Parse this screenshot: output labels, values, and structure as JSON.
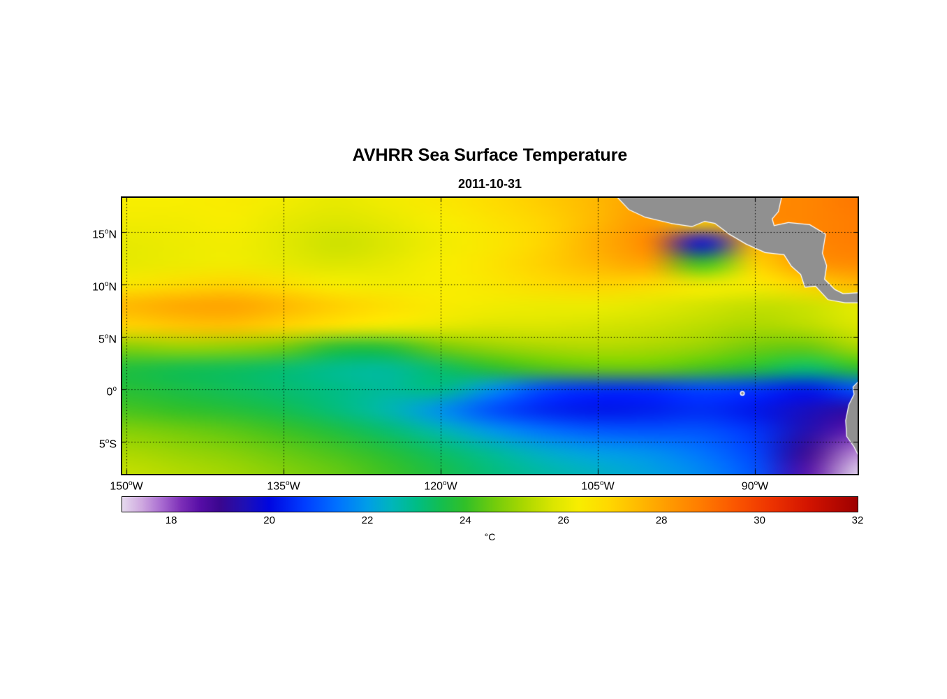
{
  "figure": {
    "title": "AVHRR Sea Surface Temperature",
    "subtitle": "2011-10-31"
  },
  "axes": {
    "lon_range": [
      -150.4,
      -80.2
    ],
    "lat_range": [
      -8.1,
      18.3
    ],
    "grid_color": "#000000",
    "x_ticks": [
      {
        "pre": "150",
        "sup": "o",
        "post": "W",
        "lon": -150
      },
      {
        "pre": "135",
        "sup": "o",
        "post": "W",
        "lon": -135
      },
      {
        "pre": "120",
        "sup": "o",
        "post": "W",
        "lon": -120
      },
      {
        "pre": "105",
        "sup": "o",
        "post": "W",
        "lon": -105
      },
      {
        "pre": "90",
        "sup": "o",
        "post": "W",
        "lon": -90
      }
    ],
    "y_ticks": [
      {
        "pre": "15",
        "sup": "o",
        "post": "N",
        "lat": 15
      },
      {
        "pre": "10",
        "sup": "o",
        "post": "N",
        "lat": 10
      },
      {
        "pre": "5",
        "sup": "o",
        "post": "N",
        "lat": 5
      },
      {
        "pre": "0",
        "sup": "o",
        "post": "",
        "lat": 0
      },
      {
        "pre": "5",
        "sup": "o",
        "post": "S",
        "lat": -5
      }
    ]
  },
  "colorbar": {
    "range": [
      17,
      32
    ],
    "unit": "°C",
    "ticks": [
      {
        "label": "18",
        "value": 18
      },
      {
        "label": "20",
        "value": 20
      },
      {
        "label": "22",
        "value": 22
      },
      {
        "label": "24",
        "value": 24
      },
      {
        "label": "26",
        "value": 26
      },
      {
        "label": "28",
        "value": 28
      },
      {
        "label": "30",
        "value": 30
      },
      {
        "label": "32",
        "value": 32
      }
    ],
    "stops": [
      {
        "v": 17.0,
        "c": "#e6daee"
      },
      {
        "v": 17.4,
        "c": "#cfa9e0"
      },
      {
        "v": 17.8,
        "c": "#a96cd1"
      },
      {
        "v": 18.2,
        "c": "#7d2fb8"
      },
      {
        "v": 18.6,
        "c": "#560da6"
      },
      {
        "v": 19.0,
        "c": "#3a078f"
      },
      {
        "v": 19.5,
        "c": "#1f10b5"
      },
      {
        "v": 20.0,
        "c": "#0007e1"
      },
      {
        "v": 20.7,
        "c": "#003cff"
      },
      {
        "v": 21.4,
        "c": "#0073ff"
      },
      {
        "v": 22.0,
        "c": "#009ee8"
      },
      {
        "v": 22.5,
        "c": "#00b6bb"
      },
      {
        "v": 23.0,
        "c": "#00bd86"
      },
      {
        "v": 23.5,
        "c": "#14be50"
      },
      {
        "v": 24.0,
        "c": "#32c028"
      },
      {
        "v": 24.6,
        "c": "#73cc0c"
      },
      {
        "v": 25.2,
        "c": "#abd800"
      },
      {
        "v": 25.8,
        "c": "#dce600"
      },
      {
        "v": 26.3,
        "c": "#f8ee00"
      },
      {
        "v": 26.9,
        "c": "#ffd900"
      },
      {
        "v": 27.5,
        "c": "#ffbc00"
      },
      {
        "v": 28.1,
        "c": "#ff9d00"
      },
      {
        "v": 28.8,
        "c": "#ff7c00"
      },
      {
        "v": 29.5,
        "c": "#fb5700"
      },
      {
        "v": 30.2,
        "c": "#ee3500"
      },
      {
        "v": 31.0,
        "c": "#d31400"
      },
      {
        "v": 32.0,
        "c": "#9e0000"
      }
    ]
  },
  "chart_data": {
    "type": "heatmap",
    "title": "AVHRR Sea Surface Temperature",
    "subtitle": "2011-10-31",
    "units": "°C",
    "value_range": [
      17,
      32
    ],
    "lon": [
      -150,
      -145,
      -140,
      -135,
      -130,
      -125,
      -120,
      -115,
      -110,
      -105,
      -100,
      -95,
      -90,
      -85,
      -80
    ],
    "lat": [
      18,
      16,
      14,
      12,
      10,
      8,
      6,
      4,
      2,
      0,
      -2,
      -4,
      -6,
      -8
    ],
    "sst": [
      [
        26.3,
        26.3,
        26.4,
        26.2,
        26.0,
        26.2,
        26.5,
        26.8,
        27.2,
        27.6,
        28.1,
        28.4,
        28.5,
        28.6,
        28.9
      ],
      [
        26.2,
        26.2,
        26.3,
        26.0,
        25.8,
        26.0,
        26.3,
        26.6,
        27.0,
        27.6,
        28.2,
        27.0,
        28.4,
        28.6,
        28.8
      ],
      [
        26.0,
        26.1,
        26.2,
        25.9,
        25.6,
        25.8,
        26.2,
        26.5,
        27.0,
        27.8,
        28.6,
        20.0,
        27.6,
        28.5,
        28.8
      ],
      [
        26.0,
        26.1,
        26.2,
        26.0,
        25.8,
        26.0,
        26.3,
        26.6,
        27.1,
        27.6,
        28.0,
        24.0,
        27.0,
        28.2,
        28.5
      ],
      [
        26.5,
        26.8,
        27.0,
        26.7,
        26.3,
        26.2,
        26.3,
        26.5,
        26.8,
        27.0,
        26.8,
        26.2,
        26.4,
        27.0,
        27.6
      ],
      [
        27.6,
        27.9,
        28.0,
        27.6,
        27.1,
        26.7,
        26.4,
        26.2,
        26.1,
        26.1,
        25.9,
        25.7,
        25.5,
        25.6,
        26.0
      ],
      [
        27.0,
        27.3,
        27.4,
        27.0,
        26.6,
        26.2,
        26.0,
        25.8,
        25.8,
        25.7,
        25.6,
        25.4,
        25.2,
        25.4,
        25.8
      ],
      [
        24.8,
        25.0,
        24.9,
        24.6,
        23.8,
        23.8,
        24.6,
        25.0,
        25.2,
        25.3,
        25.2,
        25.0,
        24.6,
        24.5,
        25.2
      ],
      [
        23.7,
        23.5,
        23.4,
        23.2,
        22.9,
        22.8,
        23.3,
        23.9,
        24.3,
        24.5,
        24.5,
        24.2,
        23.8,
        23.2,
        24.0
      ],
      [
        23.8,
        23.6,
        23.4,
        23.2,
        23.0,
        22.8,
        23.0,
        21.8,
        20.8,
        20.5,
        20.5,
        20.8,
        20.6,
        20.2,
        21.0
      ],
      [
        24.2,
        24.0,
        23.8,
        23.5,
        23.1,
        22.6,
        21.8,
        20.9,
        20.4,
        20.2,
        20.3,
        20.5,
        20.2,
        19.6,
        19.2
      ],
      [
        24.8,
        24.6,
        24.4,
        24.1,
        23.7,
        23.2,
        22.6,
        21.9,
        21.4,
        21.1,
        21.0,
        21.0,
        20.6,
        19.4,
        18.4
      ],
      [
        25.2,
        25.0,
        24.8,
        24.5,
        24.2,
        23.8,
        23.3,
        22.8,
        22.3,
        22.0,
        21.8,
        21.4,
        20.8,
        19.0,
        17.6
      ],
      [
        25.5,
        25.3,
        25.1,
        24.8,
        24.5,
        24.1,
        23.6,
        23.1,
        22.7,
        22.4,
        22.1,
        21.7,
        21.0,
        18.6,
        17.0
      ]
    ],
    "land_color": "#909090",
    "coast_color": "#ffffff",
    "land_polygons": [
      [
        [
          -103.5,
          18.8
        ],
        [
          -102.0,
          17.2
        ],
        [
          -100.5,
          16.5
        ],
        [
          -98.0,
          15.9
        ],
        [
          -96.0,
          15.6
        ],
        [
          -94.8,
          16.1
        ],
        [
          -93.8,
          15.9
        ],
        [
          -92.5,
          14.9
        ],
        [
          -90.8,
          13.9
        ],
        [
          -89.0,
          13.1
        ],
        [
          -87.2,
          12.9
        ],
        [
          -86.5,
          11.8
        ],
        [
          -85.6,
          11.0
        ],
        [
          -85.2,
          9.8
        ],
        [
          -84.2,
          9.9
        ],
        [
          -83.0,
          8.6
        ],
        [
          -81.4,
          8.3
        ],
        [
          -79.6,
          8.3
        ],
        [
          -79.6,
          9.2
        ],
        [
          -81.6,
          9.1
        ],
        [
          -82.4,
          9.5
        ],
        [
          -83.4,
          10.5
        ],
        [
          -83.2,
          11.8
        ],
        [
          -83.6,
          13.0
        ],
        [
          -83.3,
          14.8
        ],
        [
          -84.8,
          15.7
        ],
        [
          -86.8,
          15.9
        ],
        [
          -88.2,
          15.6
        ],
        [
          -88.4,
          16.3
        ],
        [
          -87.8,
          17.0
        ],
        [
          -87.4,
          18.8
        ]
      ],
      [
        [
          -79.5,
          0.9
        ],
        [
          -80.2,
          0.6
        ],
        [
          -80.6,
          0.2
        ],
        [
          -80.5,
          -0.5
        ],
        [
          -81.0,
          -1.5
        ],
        [
          -81.3,
          -3.0
        ],
        [
          -81.2,
          -4.5
        ],
        [
          -80.5,
          -5.5
        ],
        [
          -80.0,
          -6.5
        ],
        [
          -79.8,
          -8.8
        ],
        [
          -79.2,
          -8.8
        ],
        [
          -79.2,
          0.9
        ]
      ]
    ],
    "islands": [
      {
        "lon": -91.2,
        "lat": -0.4,
        "r": 3.5
      }
    ]
  }
}
